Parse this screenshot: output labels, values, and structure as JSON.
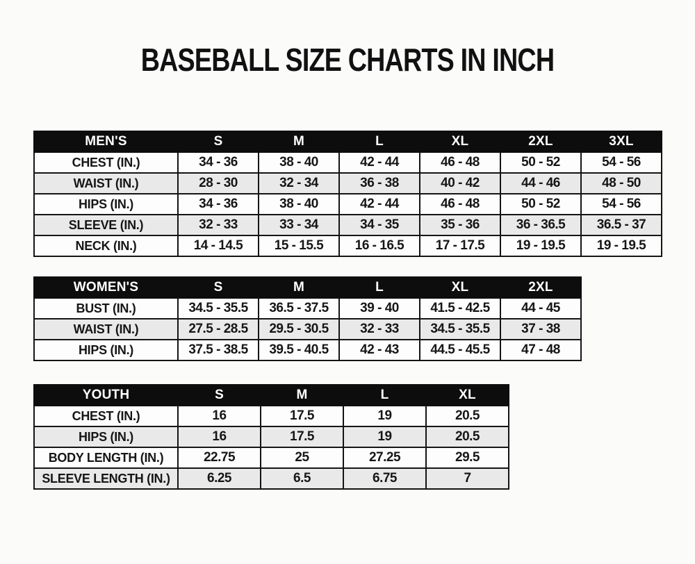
{
  "page": {
    "title": "BASEBALL SIZE CHARTS IN INCH"
  },
  "colors": {
    "header_bg": "#0d0d0d",
    "header_text": "#ffffff",
    "row_alt_bg": "#e9e9e9",
    "border": "#141414"
  },
  "tables": [
    {
      "id": "mens",
      "header": [
        "MEN'S",
        "S",
        "M",
        "L",
        "XL",
        "2XL",
        "3XL"
      ],
      "rows": [
        {
          "label": "CHEST (IN.)",
          "values": [
            "34 - 36",
            "38 - 40",
            "42 - 44",
            "46 - 48",
            "50 - 52",
            "54 - 56"
          ]
        },
        {
          "label": "WAIST (IN.)",
          "values": [
            "28 - 30",
            "32 - 34",
            "36 - 38",
            "40 - 42",
            "44 - 46",
            "48 - 50"
          ]
        },
        {
          "label": "HIPS (IN.)",
          "values": [
            "34 - 36",
            "38 - 40",
            "42 - 44",
            "46 - 48",
            "50 - 52",
            "54 - 56"
          ]
        },
        {
          "label": "SLEEVE (IN.)",
          "values": [
            "32 - 33",
            "33 - 34",
            "34 - 35",
            "35 - 36",
            "36 - 36.5",
            "36.5 - 37"
          ]
        },
        {
          "label": "NECK (IN.)",
          "values": [
            "14 - 14.5",
            "15 - 15.5",
            "16 - 16.5",
            "17 - 17.5",
            "19 - 19.5",
            "19 - 19.5"
          ]
        }
      ]
    },
    {
      "id": "womens",
      "header": [
        "WOMEN'S",
        "S",
        "M",
        "L",
        "XL",
        "2XL"
      ],
      "rows": [
        {
          "label": "BUST (IN.)",
          "values": [
            "34.5 - 35.5",
            "36.5 - 37.5",
            "39 - 40",
            "41.5 - 42.5",
            "44 - 45"
          ]
        },
        {
          "label": "WAIST (IN.)",
          "values": [
            "27.5 - 28.5",
            "29.5 - 30.5",
            "32 - 33",
            "34.5 - 35.5",
            "37 - 38"
          ]
        },
        {
          "label": "HIPS (IN.)",
          "values": [
            "37.5 - 38.5",
            "39.5 - 40.5",
            "42 - 43",
            "44.5 - 45.5",
            "47 - 48"
          ]
        }
      ]
    },
    {
      "id": "youth",
      "header": [
        "YOUTH",
        "S",
        "M",
        "L",
        "XL"
      ],
      "rows": [
        {
          "label": "CHEST (IN.)",
          "values": [
            "16",
            "17.5",
            "19",
            "20.5"
          ]
        },
        {
          "label": "HIPS (IN.)",
          "values": [
            "16",
            "17.5",
            "19",
            "20.5"
          ]
        },
        {
          "label": "BODY LENGTH (IN.)",
          "values": [
            "22.75",
            "25",
            "27.25",
            "29.5"
          ]
        },
        {
          "label": "SLEEVE LENGTH (IN.)",
          "values": [
            "6.25",
            "6.5",
            "6.75",
            "7"
          ]
        }
      ]
    }
  ]
}
